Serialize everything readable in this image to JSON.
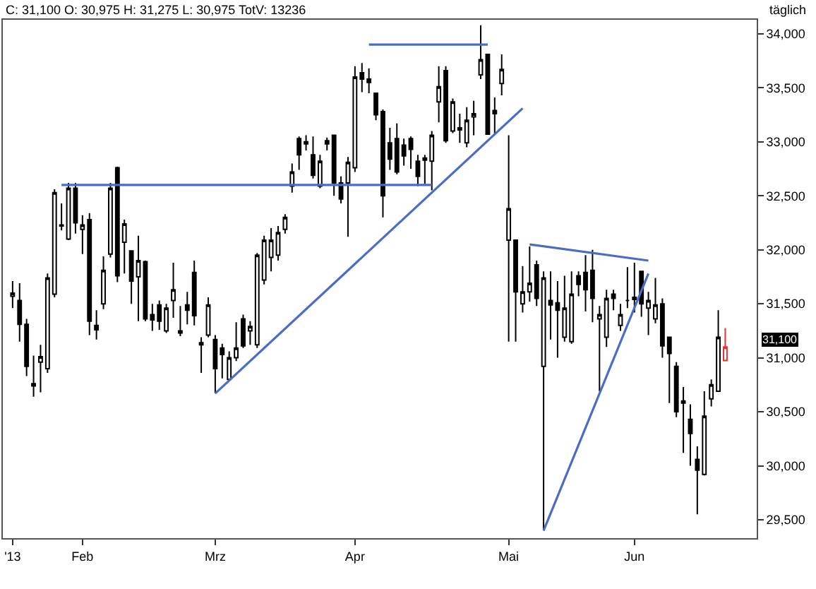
{
  "chart_data": {
    "type": "candlestick",
    "title": "C: 31,100 O: 30,975 H: 31,275 L: 30,975 TotV: 13236",
    "subtitle": "täglich",
    "categories": [
      "'13",
      null,
      null,
      null,
      null,
      null,
      null,
      null,
      null,
      null,
      "Feb",
      null,
      null,
      null,
      null,
      null,
      null,
      null,
      null,
      null,
      null,
      null,
      null,
      null,
      null,
      null,
      null,
      null,
      null,
      "Mrz",
      null,
      null,
      null,
      null,
      null,
      null,
      null,
      null,
      null,
      null,
      null,
      null,
      null,
      null,
      null,
      null,
      null,
      null,
      null,
      "Apr",
      null,
      null,
      null,
      null,
      null,
      null,
      null,
      null,
      null,
      null,
      null,
      null,
      null,
      null,
      null,
      null,
      null,
      null,
      null,
      null,
      null,
      "Mai",
      null,
      null,
      null,
      null,
      null,
      null,
      null,
      null,
      null,
      null,
      null,
      null,
      null,
      null,
      null,
      null,
      null,
      "Jun",
      null,
      null,
      null,
      null,
      null,
      null,
      null,
      null,
      null,
      null,
      null,
      null,
      null
    ],
    "ylim": [
      29330,
      34130
    ],
    "yticks": [
      {
        "value": 29500,
        "label": "29,500"
      },
      {
        "value": 30000,
        "label": "30,000"
      },
      {
        "value": 30500,
        "label": "30,500"
      },
      {
        "value": 31000,
        "label": "31,000"
      },
      {
        "value": 31500,
        "label": "31,500"
      },
      {
        "value": 32000,
        "label": "32,000"
      },
      {
        "value": 32500,
        "label": "32,500"
      },
      {
        "value": 33000,
        "label": "33,000"
      },
      {
        "value": 33500,
        "label": "33,500"
      },
      {
        "value": 34000,
        "label": "34,000"
      }
    ],
    "annotations": [
      "31,100"
    ],
    "colors": [
      "#000000",
      "#000000",
      "#000000",
      "#000000",
      "#000000",
      "#000000",
      "#000000",
      "#000000",
      "#000000",
      "#000000",
      "#000000",
      "#000000",
      "#000000",
      "#000000",
      "#000000",
      "#000000",
      "#000000",
      "#000000",
      "#000000",
      "#000000",
      "#000000",
      "#000000",
      "#000000",
      "#000000",
      "#000000",
      "#000000",
      "#000000",
      "#000000",
      "#000000",
      "#000000",
      "#000000",
      "#000000",
      "#000000",
      "#000000",
      "#000000",
      "#000000",
      "#000000",
      "#000000",
      "#000000",
      "#000000",
      "#000000",
      "#000000",
      "#000000",
      "#000000",
      "#000000",
      "#000000",
      "#000000",
      "#000000",
      "#000000",
      "#000000",
      "#000000",
      "#000000",
      "#000000",
      "#000000",
      "#000000",
      "#000000",
      "#000000",
      "#000000",
      "#000000",
      "#000000",
      "#000000",
      "#000000",
      "#000000",
      "#000000",
      "#000000",
      "#000000",
      "#000000",
      "#000000",
      "#000000",
      "#000000",
      "#000000",
      "#000000",
      "#000000",
      "#000000",
      "#000000",
      "#000000",
      "#000000",
      "#000000",
      "#000000",
      "#000000",
      "#000000",
      "#000000",
      "#000000",
      "#000000",
      "#000000",
      "#000000",
      "#000000",
      "#000000",
      "#000000",
      "#000000",
      "#000000",
      "#000000",
      "#000000",
      "#000000",
      "#000000",
      "#000000",
      "#000000",
      "#000000",
      "#000000",
      "#000000",
      "#000000",
      "#000000",
      "#e03030"
    ],
    "ohlc": [
      [
        31570,
        31710,
        31460,
        31600
      ],
      [
        31530,
        31690,
        31150,
        31310
      ],
      [
        31310,
        31360,
        30830,
        30920
      ],
      [
        30760,
        31020,
        30640,
        30740
      ],
      [
        30960,
        31120,
        30680,
        31010
      ],
      [
        30900,
        31780,
        30860,
        31740
      ],
      [
        31590,
        32560,
        31560,
        32530
      ],
      [
        32220,
        32430,
        32180,
        32230
      ],
      [
        32100,
        32620,
        32090,
        32570
      ],
      [
        32570,
        32620,
        32150,
        32250
      ],
      [
        32190,
        32320,
        31960,
        32230
      ],
      [
        32280,
        32340,
        31210,
        31340
      ],
      [
        31300,
        31440,
        31170,
        31260
      ],
      [
        31500,
        31940,
        31450,
        31810
      ],
      [
        31960,
        32620,
        31930,
        32570
      ],
      [
        32760,
        32770,
        31700,
        31760
      ],
      [
        32070,
        32280,
        31780,
        32240
      ],
      [
        31990,
        31990,
        31500,
        31710
      ],
      [
        31750,
        32130,
        31340,
        31900
      ],
      [
        31890,
        31900,
        31340,
        31360
      ],
      [
        31400,
        31500,
        31250,
        31350
      ],
      [
        31490,
        31530,
        31260,
        31340
      ],
      [
        31250,
        31500,
        31230,
        31460
      ],
      [
        31530,
        31880,
        31370,
        31630
      ],
      [
        31250,
        31480,
        31200,
        31230
      ],
      [
        31490,
        31610,
        31310,
        31440
      ],
      [
        31790,
        31900,
        31300,
        31390
      ],
      [
        31120,
        31190,
        30860,
        31140
      ],
      [
        31210,
        31560,
        31190,
        31490
      ],
      [
        31170,
        31210,
        30670,
        30900
      ],
      [
        31090,
        31130,
        30810,
        31030
      ],
      [
        30800,
        31060,
        30800,
        31000
      ],
      [
        31000,
        31330,
        30970,
        31090
      ],
      [
        31360,
        31400,
        31090,
        31110
      ],
      [
        31250,
        31340,
        31120,
        31290
      ],
      [
        31120,
        31970,
        31090,
        31950
      ],
      [
        31720,
        32130,
        31680,
        32090
      ],
      [
        31930,
        32200,
        31800,
        32090
      ],
      [
        31950,
        32220,
        31900,
        32160
      ],
      [
        32190,
        32330,
        32150,
        32300
      ],
      [
        32590,
        32800,
        32530,
        32720
      ],
      [
        33030,
        33050,
        32740,
        32880
      ],
      [
        33000,
        33060,
        32920,
        32980
      ],
      [
        32880,
        33050,
        32660,
        32690
      ],
      [
        32590,
        32880,
        32570,
        32820
      ],
      [
        33010,
        33040,
        32920,
        32980
      ],
      [
        33060,
        33060,
        32500,
        32620
      ],
      [
        32620,
        32680,
        32430,
        32470
      ],
      [
        32620,
        32860,
        32120,
        32810
      ],
      [
        32760,
        33700,
        32720,
        33600
      ],
      [
        33640,
        33730,
        33460,
        33580
      ],
      [
        33580,
        33680,
        33450,
        33550
      ],
      [
        33450,
        33450,
        33200,
        33250
      ],
      [
        33280,
        33300,
        32300,
        32500
      ],
      [
        32990,
        33130,
        32740,
        32840
      ],
      [
        33030,
        33170,
        32700,
        32720
      ],
      [
        32970,
        33030,
        32780,
        32870
      ],
      [
        33030,
        33050,
        32750,
        32930
      ],
      [
        32820,
        32880,
        32590,
        32680
      ],
      [
        32830,
        32880,
        32610,
        32850
      ],
      [
        32820,
        33100,
        32550,
        33060
      ],
      [
        33370,
        33700,
        33180,
        33510
      ],
      [
        33660,
        33700,
        32990,
        33010
      ],
      [
        33100,
        33400,
        33080,
        33370
      ],
      [
        33130,
        33260,
        32990,
        33110
      ],
      [
        32990,
        33320,
        32950,
        33200
      ],
      [
        33230,
        33380,
        33060,
        33260
      ],
      [
        33620,
        34080,
        33580,
        33760
      ],
      [
        33810,
        33810,
        33070,
        33070
      ],
      [
        33290,
        33410,
        33070,
        33260
      ],
      [
        33540,
        33810,
        33430,
        33670
      ],
      [
        32090,
        33060,
        31150,
        32380
      ],
      [
        32090,
        32090,
        31150,
        31610
      ],
      [
        31500,
        31850,
        31420,
        31610
      ],
      [
        31610,
        32030,
        31520,
        31690
      ],
      [
        31860,
        31900,
        31480,
        31550
      ],
      [
        30920,
        31800,
        29400,
        31740
      ],
      [
        31530,
        31800,
        31170,
        31490
      ],
      [
        31510,
        31710,
        31000,
        31440
      ],
      [
        31190,
        31760,
        31150,
        31460
      ],
      [
        31150,
        31800,
        31130,
        31590
      ],
      [
        31760,
        31800,
        31570,
        31680
      ],
      [
        31790,
        31950,
        31430,
        31630
      ],
      [
        31810,
        32000,
        31330,
        31550
      ],
      [
        31360,
        31480,
        30690,
        31400
      ],
      [
        31190,
        31630,
        31100,
        31550
      ],
      [
        31590,
        31630,
        31440,
        31550
      ],
      [
        31300,
        31500,
        31250,
        31400
      ],
      [
        31530,
        31840,
        31460,
        31530
      ],
      [
        31540,
        31880,
        31420,
        31560
      ],
      [
        31800,
        31800,
        31380,
        31500
      ],
      [
        31460,
        31610,
        31210,
        31530
      ],
      [
        31360,
        31740,
        31320,
        31490
      ],
      [
        31500,
        31550,
        31000,
        31110
      ],
      [
        31190,
        31190,
        30580,
        31040
      ],
      [
        30920,
        30960,
        30450,
        30500
      ],
      [
        30600,
        30730,
        30120,
        30580
      ],
      [
        30430,
        30570,
        30000,
        30300
      ],
      [
        30060,
        30180,
        29550,
        29960
      ],
      [
        29920,
        30690,
        29910,
        30460
      ],
      [
        30620,
        30800,
        30550,
        30750
      ],
      [
        30690,
        31440,
        30690,
        31190
      ],
      [
        30975,
        31275,
        30975,
        31100
      ]
    ],
    "series": [
      {
        "type": "line",
        "color": "#4a6cc4",
        "values": [
          null,
          null,
          null,
          null,
          null,
          null,
          null,
          32600,
          null,
          null,
          null,
          null,
          null,
          null,
          null,
          null,
          null,
          null,
          null,
          null,
          null,
          null,
          null,
          null,
          null,
          null,
          null,
          null,
          null,
          null,
          null,
          null,
          null,
          null,
          null,
          null,
          null,
          null,
          null,
          null,
          null,
          null,
          null,
          null,
          null,
          null,
          null,
          null,
          null,
          null,
          null,
          null,
          null,
          null,
          null,
          null,
          null,
          null,
          null,
          null,
          32600,
          null,
          null,
          null,
          null,
          null,
          null,
          null,
          null,
          null,
          null,
          null,
          null,
          null,
          null,
          null,
          null,
          null,
          null,
          null,
          null,
          null,
          null,
          null,
          null,
          null,
          null,
          null,
          null,
          null,
          null,
          null,
          null,
          null,
          null,
          null,
          null,
          null,
          null,
          null,
          null,
          null,
          null
        ]
      },
      {
        "type": "line",
        "color": "#4a6cc4",
        "values": [
          null,
          null,
          null,
          null,
          null,
          null,
          null,
          null,
          null,
          null,
          null,
          null,
          null,
          null,
          null,
          null,
          null,
          null,
          null,
          null,
          null,
          null,
          null,
          null,
          null,
          null,
          null,
          null,
          null,
          null,
          null,
          null,
          null,
          null,
          null,
          null,
          null,
          null,
          null,
          null,
          null,
          null,
          null,
          null,
          null,
          null,
          null,
          null,
          null,
          null,
          null,
          33900,
          null,
          null,
          null,
          null,
          null,
          null,
          null,
          null,
          null,
          null,
          null,
          null,
          null,
          null,
          null,
          null,
          33900,
          null,
          null,
          null,
          null,
          null,
          null,
          null,
          null,
          null,
          null,
          null,
          null,
          null,
          null,
          null,
          null,
          null,
          null,
          null,
          null,
          null,
          null,
          null,
          null,
          null,
          null,
          null,
          null,
          null,
          null,
          null,
          null,
          null,
          null
        ]
      },
      {
        "type": "line",
        "color": "#4a6cc4",
        "values": [
          null,
          null,
          null,
          null,
          null,
          null,
          null,
          null,
          null,
          null,
          null,
          null,
          null,
          null,
          null,
          null,
          null,
          null,
          null,
          null,
          null,
          null,
          null,
          null,
          null,
          null,
          null,
          null,
          null,
          30670,
          null,
          null,
          null,
          null,
          null,
          null,
          null,
          null,
          null,
          null,
          null,
          null,
          null,
          null,
          null,
          null,
          null,
          null,
          null,
          null,
          null,
          null,
          null,
          null,
          null,
          null,
          null,
          null,
          null,
          null,
          null,
          null,
          null,
          null,
          null,
          null,
          null,
          null,
          null,
          null,
          null,
          null,
          null,
          33310,
          null,
          null,
          null,
          null,
          null,
          null,
          null,
          null,
          null,
          null,
          null,
          null,
          null,
          null,
          null,
          null,
          null,
          null,
          null,
          null,
          null,
          null,
          null,
          null,
          null,
          null,
          null,
          null,
          null
        ]
      },
      {
        "type": "line",
        "color": "#4a6cc4",
        "values": [
          null,
          null,
          null,
          null,
          null,
          null,
          null,
          null,
          null,
          null,
          null,
          null,
          null,
          null,
          null,
          null,
          null,
          null,
          null,
          null,
          null,
          null,
          null,
          null,
          null,
          null,
          null,
          null,
          null,
          null,
          null,
          null,
          null,
          null,
          null,
          null,
          null,
          null,
          null,
          null,
          null,
          null,
          null,
          null,
          null,
          null,
          null,
          null,
          null,
          null,
          null,
          null,
          null,
          null,
          null,
          null,
          null,
          null,
          null,
          null,
          null,
          null,
          null,
          null,
          null,
          null,
          null,
          null,
          null,
          null,
          null,
          null,
          null,
          null,
          32050,
          null,
          null,
          null,
          null,
          null,
          null,
          null,
          null,
          null,
          null,
          null,
          null,
          null,
          null,
          null,
          null,
          31900,
          null,
          null,
          null,
          null,
          null,
          null,
          null,
          null,
          null,
          null,
          null
        ]
      },
      {
        "type": "line",
        "color": "#4a6cc4",
        "values": [
          null,
          null,
          null,
          null,
          null,
          null,
          null,
          null,
          null,
          null,
          null,
          null,
          null,
          null,
          null,
          null,
          null,
          null,
          null,
          null,
          null,
          null,
          null,
          null,
          null,
          null,
          null,
          null,
          null,
          null,
          null,
          null,
          null,
          null,
          null,
          null,
          null,
          null,
          null,
          null,
          null,
          null,
          null,
          null,
          null,
          null,
          null,
          null,
          null,
          null,
          null,
          null,
          null,
          null,
          null,
          null,
          null,
          null,
          null,
          null,
          null,
          null,
          null,
          null,
          null,
          null,
          null,
          null,
          null,
          null,
          null,
          null,
          null,
          null,
          null,
          null,
          29400,
          null,
          null,
          null,
          null,
          null,
          null,
          null,
          null,
          null,
          null,
          null,
          null,
          null,
          null,
          31780,
          null,
          null,
          null,
          null,
          null,
          null,
          null,
          null,
          null,
          null,
          null
        ]
      }
    ]
  }
}
